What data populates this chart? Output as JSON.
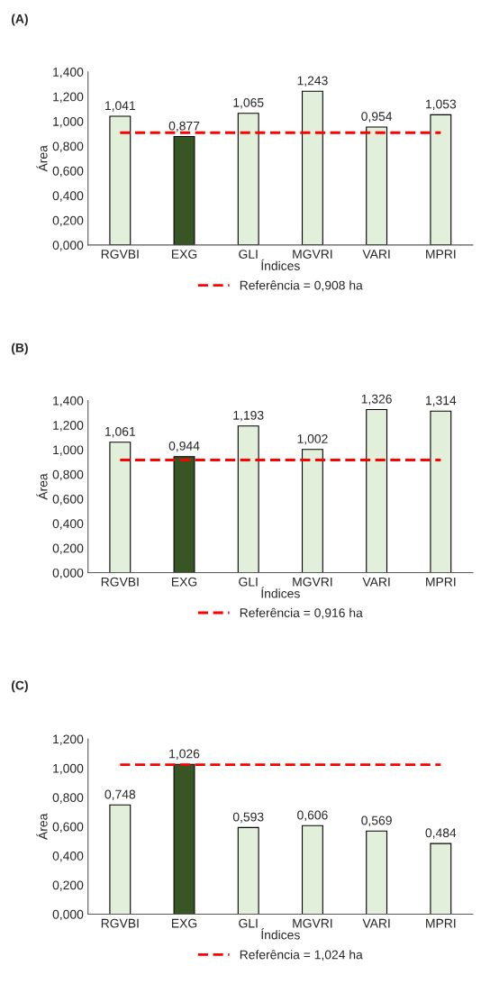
{
  "chart_data": [
    {
      "type": "bar",
      "title": "(A)",
      "xlabel": "Índices",
      "ylabel": "Área",
      "categories": [
        "RGVBI",
        "EXG",
        "GLI",
        "MGVRI",
        "VARI",
        "MPRI"
      ],
      "values": [
        1.041,
        0.877,
        1.065,
        1.243,
        0.954,
        1.053
      ],
      "colors": [
        "#e2efda",
        "#375623",
        "#e2efda",
        "#e2efda",
        "#e2efda",
        "#e2efda"
      ],
      "value_labels": [
        "1,041",
        "0,877",
        "1,065",
        "1,243",
        "0,954",
        "1,053"
      ],
      "ylim": [
        0,
        1.4
      ],
      "yticks": [
        {
          "value": 0,
          "label": "0,000"
        },
        {
          "value": 0.2,
          "label": "0,200"
        },
        {
          "value": 0.4,
          "label": "0,400"
        },
        {
          "value": 0.6,
          "label": "0,600"
        },
        {
          "value": 0.8,
          "label": "0,800"
        },
        {
          "value": 1.0,
          "label": "1,000"
        },
        {
          "value": 1.2,
          "label": "1,200"
        },
        {
          "value": 1.4,
          "label": "1,400"
        }
      ],
      "ref_lines": [
        {
          "axis": "y",
          "value": 0.908,
          "label": "Referência = 0,908 ha",
          "color": "#ff0000",
          "line_style": "dashed"
        }
      ],
      "legend": "bottom",
      "grid": false
    },
    {
      "type": "bar",
      "title": "(B)",
      "xlabel": "Índices",
      "ylabel": "Área",
      "categories": [
        "RGVBI",
        "EXG",
        "GLI",
        "MGVRI",
        "VARI",
        "MPRI"
      ],
      "values": [
        1.061,
        0.944,
        1.193,
        1.002,
        1.326,
        1.314
      ],
      "colors": [
        "#e2efda",
        "#375623",
        "#e2efda",
        "#e2efda",
        "#e2efda",
        "#e2efda"
      ],
      "value_labels": [
        "1,061",
        "0,944",
        "1,193",
        "1,002",
        "1,326",
        "1,314"
      ],
      "ylim": [
        0,
        1.4
      ],
      "yticks": [
        {
          "value": 0,
          "label": "0,000"
        },
        {
          "value": 0.2,
          "label": "0,200"
        },
        {
          "value": 0.4,
          "label": "0,400"
        },
        {
          "value": 0.6,
          "label": "0,600"
        },
        {
          "value": 0.8,
          "label": "0,800"
        },
        {
          "value": 1.0,
          "label": "1,000"
        },
        {
          "value": 1.2,
          "label": "1,200"
        },
        {
          "value": 1.4,
          "label": "1,400"
        }
      ],
      "ref_lines": [
        {
          "axis": "y",
          "value": 0.916,
          "label": "Referência = 0,916 ha",
          "color": "#ff0000",
          "line_style": "dashed"
        }
      ],
      "legend": "bottom",
      "grid": false
    },
    {
      "type": "bar",
      "title": "(C)",
      "xlabel": "Índices",
      "ylabel": "Área",
      "categories": [
        "RGVBI",
        "EXG",
        "GLI",
        "MGVRI",
        "VARI",
        "MPRI"
      ],
      "values": [
        0.748,
        1.026,
        0.593,
        0.606,
        0.569,
        0.484
      ],
      "colors": [
        "#e2efda",
        "#375623",
        "#e2efda",
        "#e2efda",
        "#e2efda",
        "#e2efda"
      ],
      "value_labels": [
        "0,748",
        "1,026",
        "0,593",
        "0,606",
        "0,569",
        "0,484"
      ],
      "ylim": [
        0,
        1.2
      ],
      "yticks": [
        {
          "value": 0,
          "label": "0,000"
        },
        {
          "value": 0.2,
          "label": "0,200"
        },
        {
          "value": 0.4,
          "label": "0,400"
        },
        {
          "value": 0.6,
          "label": "0,600"
        },
        {
          "value": 0.8,
          "label": "0,800"
        },
        {
          "value": 1.0,
          "label": "1,000"
        },
        {
          "value": 1.2,
          "label": "1,200"
        }
      ],
      "ref_lines": [
        {
          "axis": "y",
          "value": 1.024,
          "label": "Referência = 1,024 ha",
          "color": "#ff0000",
          "line_style": "dashed"
        }
      ],
      "legend": "bottom",
      "grid": false
    }
  ]
}
